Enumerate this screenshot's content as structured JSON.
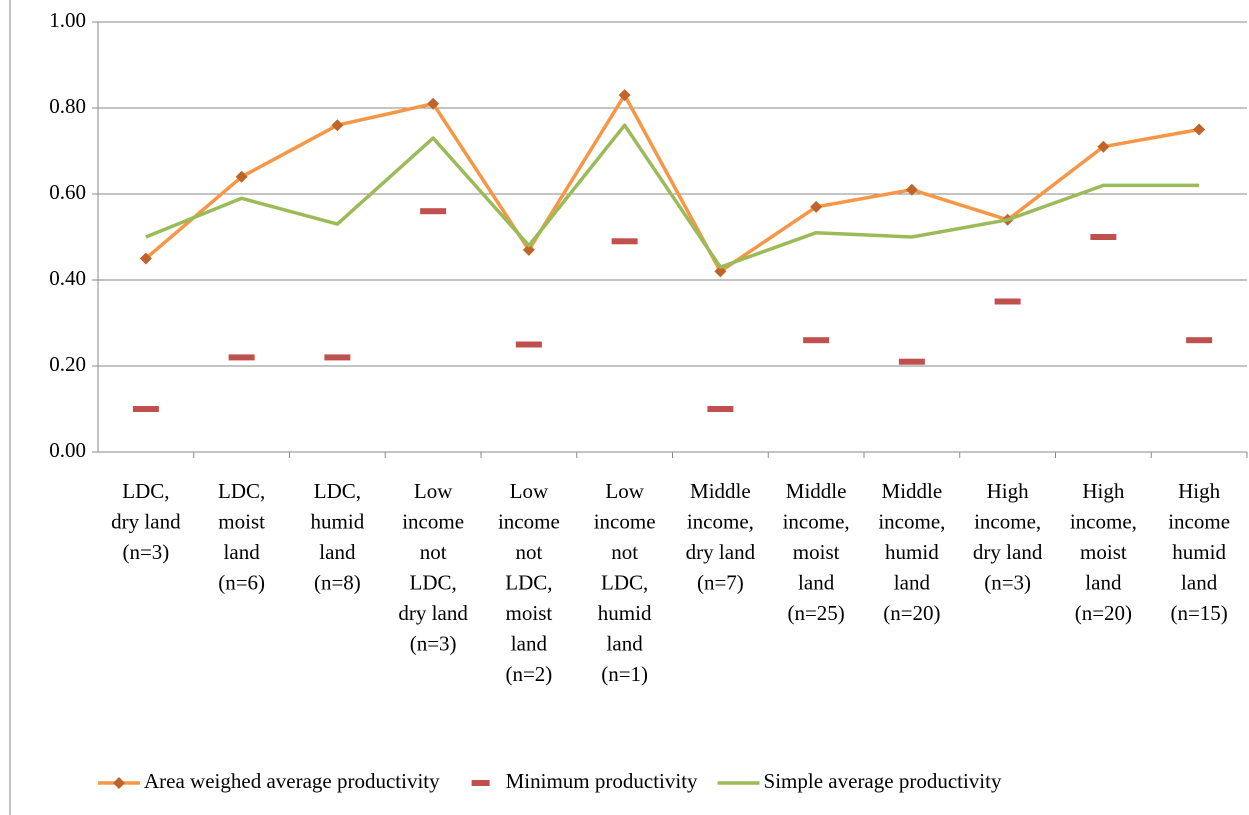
{
  "chart_data": {
    "type": "line",
    "categories": [
      "LDC,\ndry land\n(n=3)",
      "LDC,\nmoist\nland\n(n=6)",
      "LDC,\nhumid\nland\n(n=8)",
      "Low\nincome\nnot\nLDC,\ndry land\n(n=3)",
      "Low\nincome\nnot\nLDC,\nmoist\nland\n(n=2)",
      "Low\nincome\nnot\nLDC,\nhumid\nland\n(n=1)",
      "Middle\nincome,\ndry land\n(n=7)",
      "Middle\nincome,\nmoist\nland\n(n=25)",
      "Middle\nincome,\nhumid\nland\n(n=20)",
      "High\nincome,\ndry land\n(n=3)",
      "High\nincome,\nmoist\nland\n(n=20)",
      "High\nincome\nhumid\nland\n(n=15)"
    ],
    "series": [
      {
        "name": "Area weighed average productivity",
        "color": "#f79646",
        "marker_color": "#c0652a",
        "line": true,
        "marker": "diamond",
        "values": [
          0.45,
          0.64,
          0.76,
          0.81,
          0.47,
          0.83,
          0.42,
          0.57,
          0.61,
          0.54,
          0.71,
          0.75
        ]
      },
      {
        "name": "Minimum productivity",
        "color": "#c0504d",
        "line": false,
        "marker": "dash",
        "values": [
          0.1,
          0.22,
          0.22,
          0.56,
          0.25,
          0.49,
          0.1,
          0.26,
          0.21,
          0.35,
          0.5,
          0.26
        ]
      },
      {
        "name": "Simple average productivity",
        "color": "#9bbb59",
        "line": true,
        "marker": "none",
        "values": [
          0.5,
          0.59,
          0.53,
          0.73,
          0.48,
          0.76,
          0.43,
          0.51,
          0.5,
          0.54,
          0.62,
          0.62
        ]
      }
    ],
    "ylim": [
      0,
      1
    ],
    "yticks": [
      {
        "value": 0,
        "label": "0.00"
      },
      {
        "value": 0.2,
        "label": "0.20"
      },
      {
        "value": 0.4,
        "label": "0.40"
      },
      {
        "value": 0.6,
        "label": "0.60"
      },
      {
        "value": 0.8,
        "label": "0.80"
      },
      {
        "value": 1,
        "label": "1.00"
      }
    ],
    "grid": true,
    "legend": "bottom"
  }
}
